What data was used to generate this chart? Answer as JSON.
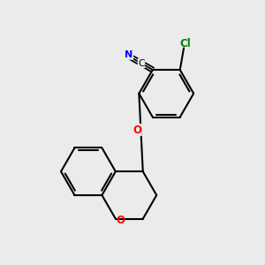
{
  "bg_color": "#ebebeb",
  "bond_color": "#000000",
  "bond_width": 1.5,
  "N_color": "#0000ff",
  "O_color": "#ff0000",
  "Cl_color": "#008000",
  "C_color": "#000000",
  "figsize": [
    3.0,
    3.0
  ],
  "dpi": 100,
  "xlim": [
    0,
    10
  ],
  "ylim": [
    0,
    10
  ]
}
